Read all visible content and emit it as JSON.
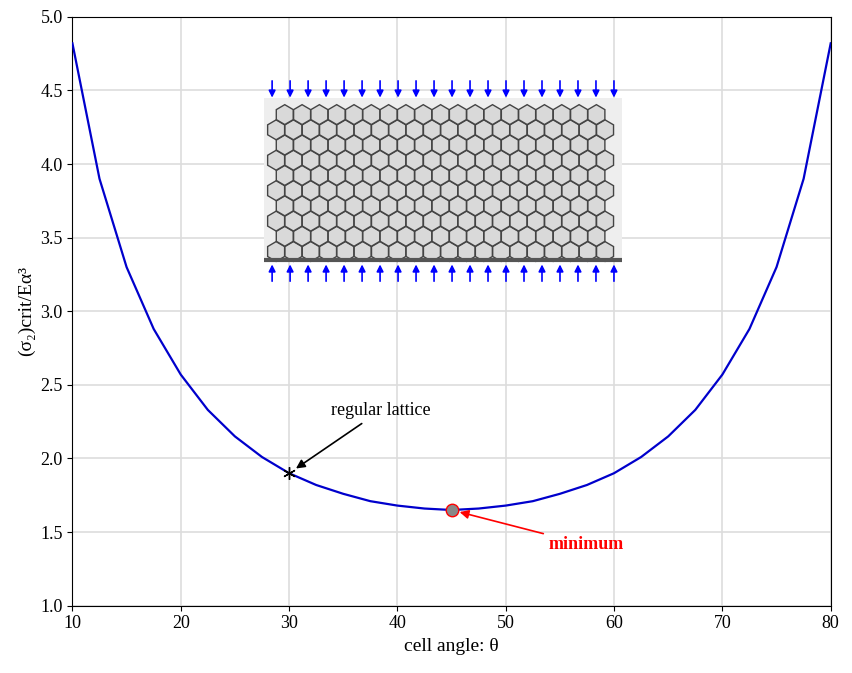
{
  "chart_data": {
    "type": "line",
    "x": [
      10,
      12.5,
      15,
      17.5,
      20,
      22.5,
      25,
      27.5,
      30,
      32.5,
      35,
      37.5,
      40,
      42.5,
      45,
      47.5,
      50,
      52.5,
      55,
      57.5,
      60,
      62.5,
      65,
      67.5,
      70,
      72.5,
      75,
      77.5,
      80
    ],
    "values": [
      4.82,
      3.9,
      3.3,
      2.88,
      2.57,
      2.33,
      2.15,
      2.01,
      1.9,
      1.82,
      1.76,
      1.71,
      1.68,
      1.66,
      1.65,
      1.66,
      1.68,
      1.71,
      1.76,
      1.82,
      1.9,
      2.01,
      2.15,
      2.33,
      2.57,
      2.88,
      3.3,
      3.9,
      4.82
    ],
    "color": "#0000cc",
    "x_label": "cell angle: θ",
    "y_label": "(σ₂)crit/Eα³",
    "xlim": [
      10,
      80
    ],
    "ylim": [
      1,
      5
    ],
    "xticks": [
      10,
      20,
      30,
      40,
      50,
      60,
      70,
      80
    ],
    "yticks": [
      {
        "value": 1,
        "label": "1.0"
      },
      {
        "value": 1.5,
        "label": "1.5"
      },
      {
        "value": 2,
        "label": "2.0"
      },
      {
        "value": 2.5,
        "label": "2.5"
      },
      {
        "value": 3,
        "label": "3.0"
      },
      {
        "value": 3.5,
        "label": "3.5"
      },
      {
        "value": 4,
        "label": "4.0"
      },
      {
        "value": 4.5,
        "label": "4.5"
      },
      {
        "value": 5,
        "label": "5.0"
      }
    ],
    "grid": true,
    "annotations": [
      {
        "text": "regular lattice",
        "x": 30,
        "y": 1.9,
        "color": "#000000",
        "marker": "asterisk"
      },
      {
        "text": "minimum",
        "x": 45,
        "y": 1.65,
        "color": "#ff0000",
        "marker": "circle"
      }
    ]
  }
}
